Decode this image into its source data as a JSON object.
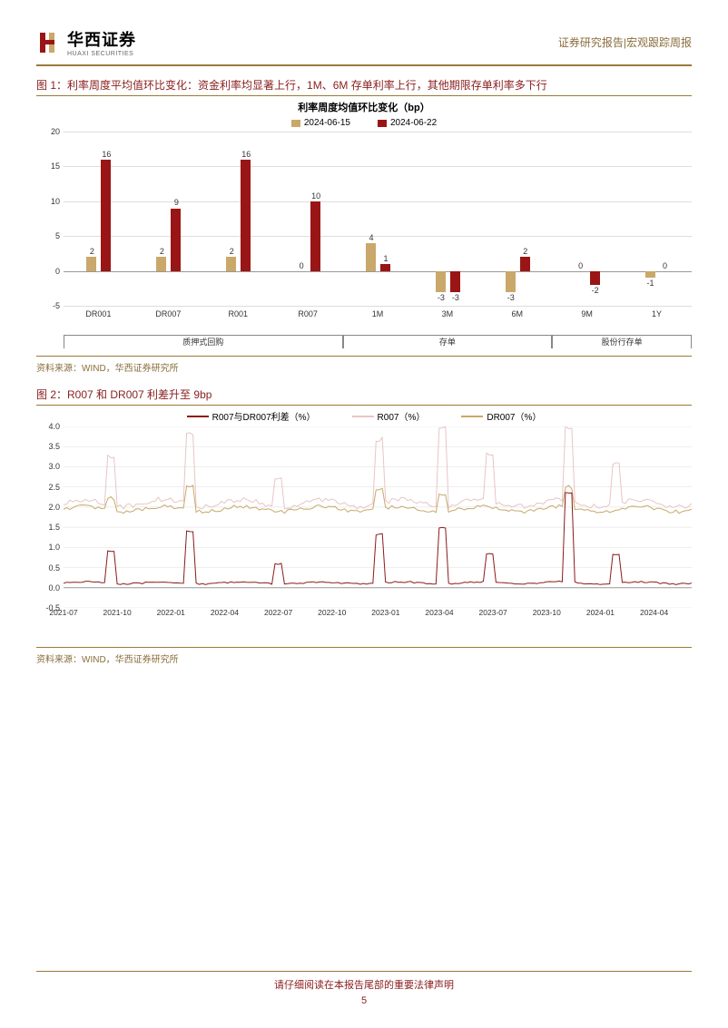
{
  "header": {
    "logo_cn": "华西证券",
    "logo_en": "HUAXI SECURITIES",
    "right": "证券研究报告|宏观跟踪周报"
  },
  "colors": {
    "brand": "#9a1515",
    "gold": "#c9a86a",
    "accent_rule": "#9a7a3a",
    "text_red": "#8b2020"
  },
  "fig1": {
    "title_prefix": "图 1：",
    "title": "利率周度平均值环比变化：资金利率均显著上行，1M、6M 存单利率上行，其他期限存单利率多下行",
    "chart_title": "利率周度均值环比变化（bp）",
    "legend": [
      {
        "label": "2024-06-15",
        "color": "#c9a86a"
      },
      {
        "label": "2024-06-22",
        "color": "#9a1515"
      }
    ],
    "ylim": [
      -5,
      20
    ],
    "ytick_step": 5,
    "categories": [
      "DR001",
      "DR007",
      "R001",
      "R007",
      "1M",
      "3M",
      "6M",
      "9M",
      "1Y"
    ],
    "series1": [
      2,
      2,
      2,
      0,
      4,
      -3,
      -3,
      0,
      -1
    ],
    "series2": [
      16,
      9,
      16,
      10,
      1,
      -3,
      2,
      -2,
      0
    ],
    "groups": [
      {
        "label": "质押式回购",
        "span": [
          0,
          3
        ]
      },
      {
        "label": "存单",
        "span": [
          4,
          6
        ]
      },
      {
        "label": "股份行存单",
        "span": [
          7,
          8
        ]
      }
    ],
    "source": "资料来源：WIND，华西证券研究所"
  },
  "fig2": {
    "title_prefix": "图 2：",
    "title": "R007 和 DR007 利差升至 9bp",
    "legend": [
      {
        "label": "R007与DR007利差（%）",
        "color": "#8b1a1a"
      },
      {
        "label": "R007（%）",
        "color": "#e8c5c5"
      },
      {
        "label": "DR007（%）",
        "color": "#c9a86a"
      }
    ],
    "ylim": [
      -0.5,
      4.0
    ],
    "ytick_step": 0.5,
    "xticks": [
      "2021-07",
      "2021-10",
      "2022-01",
      "2022-04",
      "2022-07",
      "2022-10",
      "2023-01",
      "2023-04",
      "2023-07",
      "2023-10",
      "2024-01",
      "2024-04"
    ],
    "source": "资料来源：WIND，华西证券研究所"
  },
  "footer": {
    "text": "请仔细阅读在本报告尾部的重要法律声明",
    "page": "5"
  }
}
